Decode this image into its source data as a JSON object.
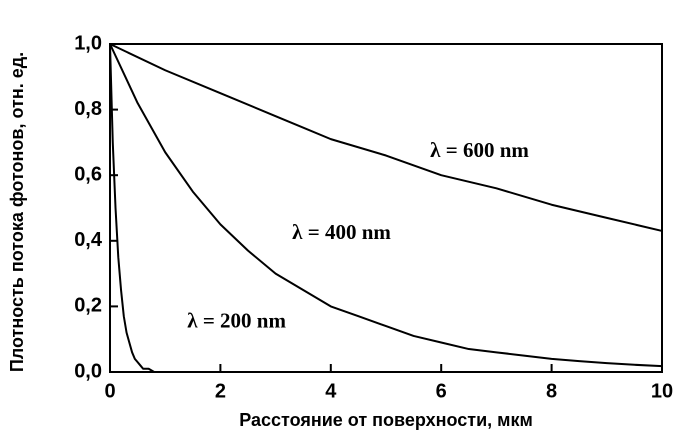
{
  "chart_data": {
    "type": "line",
    "xlabel": "Расстояние от поверхности, мкм",
    "ylabel": "Плотность потока фотонов, отн. ед.",
    "xlim": [
      0,
      10
    ],
    "ylim": [
      0,
      1
    ],
    "xticks": [
      0,
      2,
      4,
      6,
      8,
      10
    ],
    "yticks": [
      {
        "value": 0,
        "label": "0,0"
      },
      {
        "value": 0.2,
        "label": "0,2"
      },
      {
        "value": 0.4,
        "label": "0,4"
      },
      {
        "value": 0.6,
        "label": "0,6"
      },
      {
        "value": 0.8,
        "label": "0,8"
      },
      {
        "value": 1,
        "label": "1,0"
      }
    ],
    "series": [
      {
        "name": "λ = 600 nm",
        "color": "#000000",
        "x": [
          0,
          1,
          2,
          3,
          4,
          5,
          6,
          7,
          8,
          9,
          10
        ],
        "values": [
          1,
          0.92,
          0.85,
          0.78,
          0.71,
          0.66,
          0.6,
          0.56,
          0.51,
          0.47,
          0.43
        ]
      },
      {
        "name": "λ = 400 nm",
        "color": "#000000",
        "x": [
          0,
          0.5,
          1,
          1.5,
          2,
          2.5,
          3,
          3.5,
          4,
          4.5,
          5,
          5.5,
          6,
          6.5,
          7,
          7.5,
          8,
          8.5,
          9,
          9.5,
          10
        ],
        "values": [
          1,
          0.82,
          0.67,
          0.55,
          0.45,
          0.37,
          0.3,
          0.25,
          0.2,
          0.17,
          0.14,
          0.11,
          0.09,
          0.07,
          0.06,
          0.05,
          0.04,
          0.033,
          0.027,
          0.022,
          0.018
        ]
      },
      {
        "name": "λ = 200 nm",
        "color": "#000000",
        "x": [
          0,
          0.05,
          0.1,
          0.15,
          0.2,
          0.25,
          0.3,
          0.35,
          0.4,
          0.45,
          0.5,
          0.55,
          0.6,
          0.7,
          0.8,
          1,
          10
        ],
        "values": [
          1,
          0.7,
          0.5,
          0.35,
          0.25,
          0.17,
          0.12,
          0.09,
          0.06,
          0.04,
          0.03,
          0.02,
          0.01,
          0.01,
          0,
          0,
          0
        ]
      }
    ]
  }
}
